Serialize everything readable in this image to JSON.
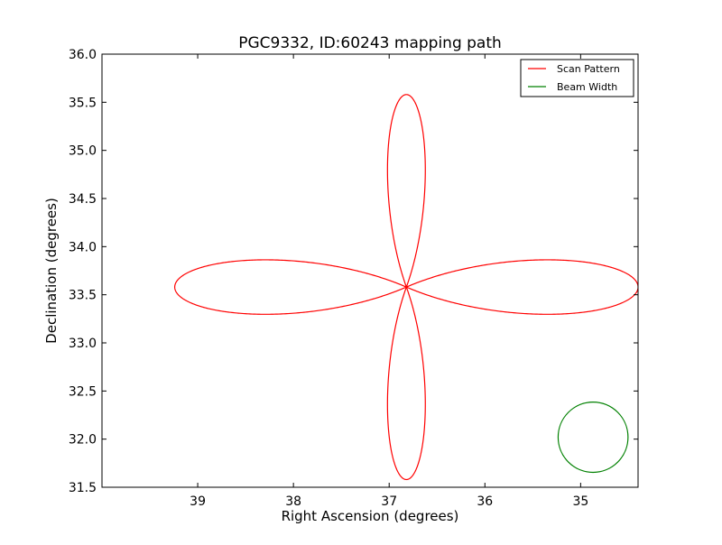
{
  "chart_data": {
    "type": "line",
    "title": "PGC9332, ID:60243 mapping path",
    "xlabel": "Right Ascension (degrees)",
    "ylabel": "Declination (degrees)",
    "xlim": [
      40.0,
      34.4
    ],
    "ylim": [
      31.5,
      36.0
    ],
    "x_inverted": true,
    "xticks": [
      39,
      38,
      37,
      36,
      35
    ],
    "xtick_labels": [
      "39",
      "38",
      "37",
      "36",
      "35"
    ],
    "yticks": [
      31.5,
      32.0,
      32.5,
      33.0,
      33.5,
      34.0,
      34.5,
      35.0,
      35.5,
      36.0
    ],
    "ytick_labels": [
      "31.5",
      "32.0",
      "32.5",
      "33.0",
      "33.5",
      "34.0",
      "34.5",
      "35.0",
      "35.5",
      "36.0"
    ],
    "grid": false,
    "legend_position": "top-right",
    "series": [
      {
        "name": "Scan Pattern",
        "color": "#ff0000",
        "shape": "four-petal rose curve",
        "center": [
          36.82,
          33.58
        ],
        "petal_lengths": {
          "north": 2.0,
          "south": 2.0,
          "east": 2.42,
          "west": 2.42
        },
        "extent": {
          "x": [
            34.4,
            39.25
          ],
          "y": [
            31.58,
            35.58
          ]
        }
      },
      {
        "name": "Beam Width",
        "color": "#008000",
        "shape": "circle",
        "center": [
          34.87,
          32.02
        ],
        "radius": 0.365
      }
    ]
  }
}
